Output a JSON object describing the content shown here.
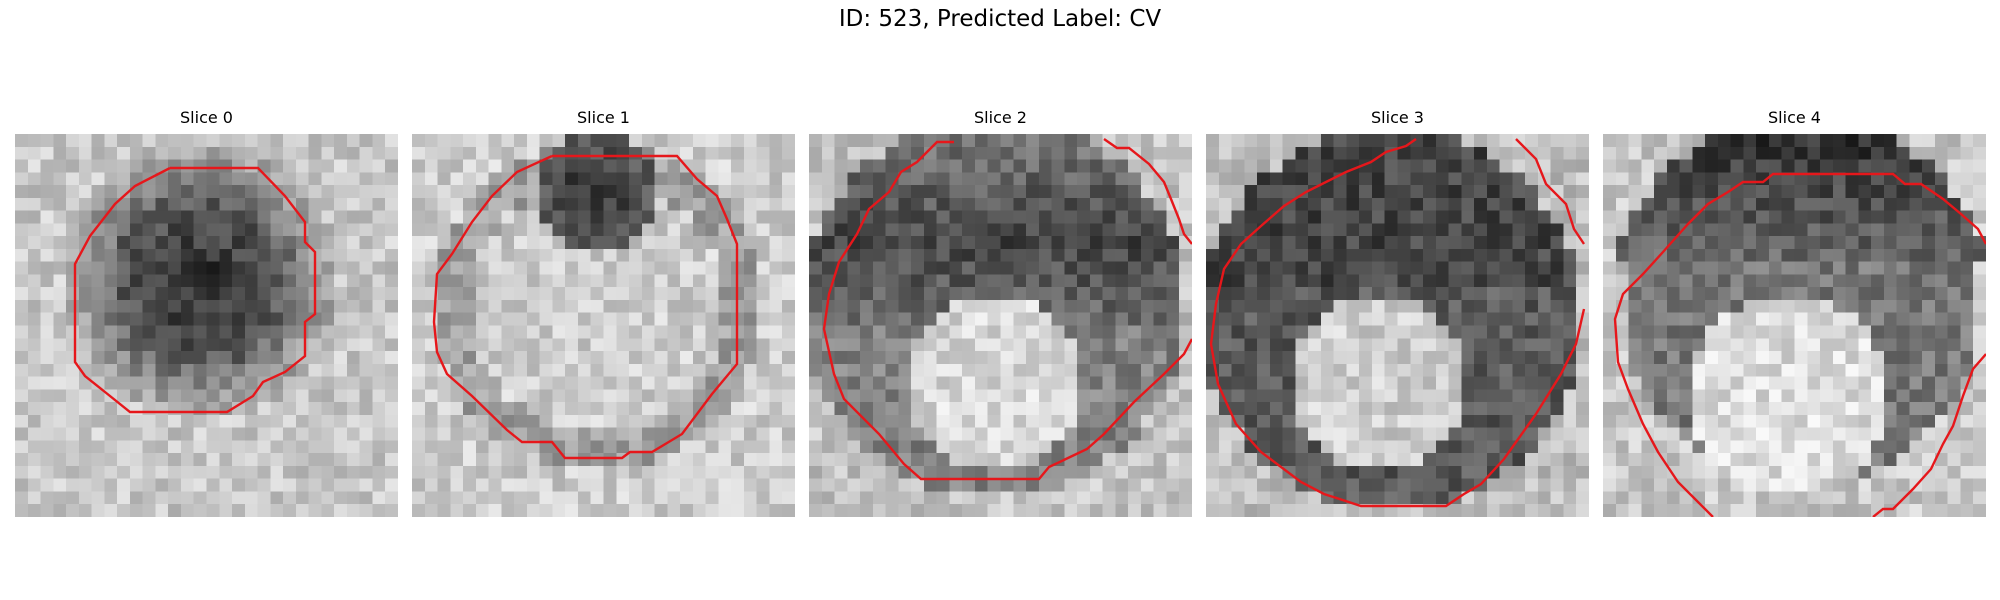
{
  "figure": {
    "title": "ID: 523, Predicted Label: CV"
  },
  "slices": [
    {
      "label": "Slice 0"
    },
    {
      "label": "Slice 1"
    },
    {
      "label": "Slice 2"
    },
    {
      "label": "Slice 3"
    },
    {
      "label": "Slice 4"
    }
  ],
  "contour_color": "#e6171b"
}
